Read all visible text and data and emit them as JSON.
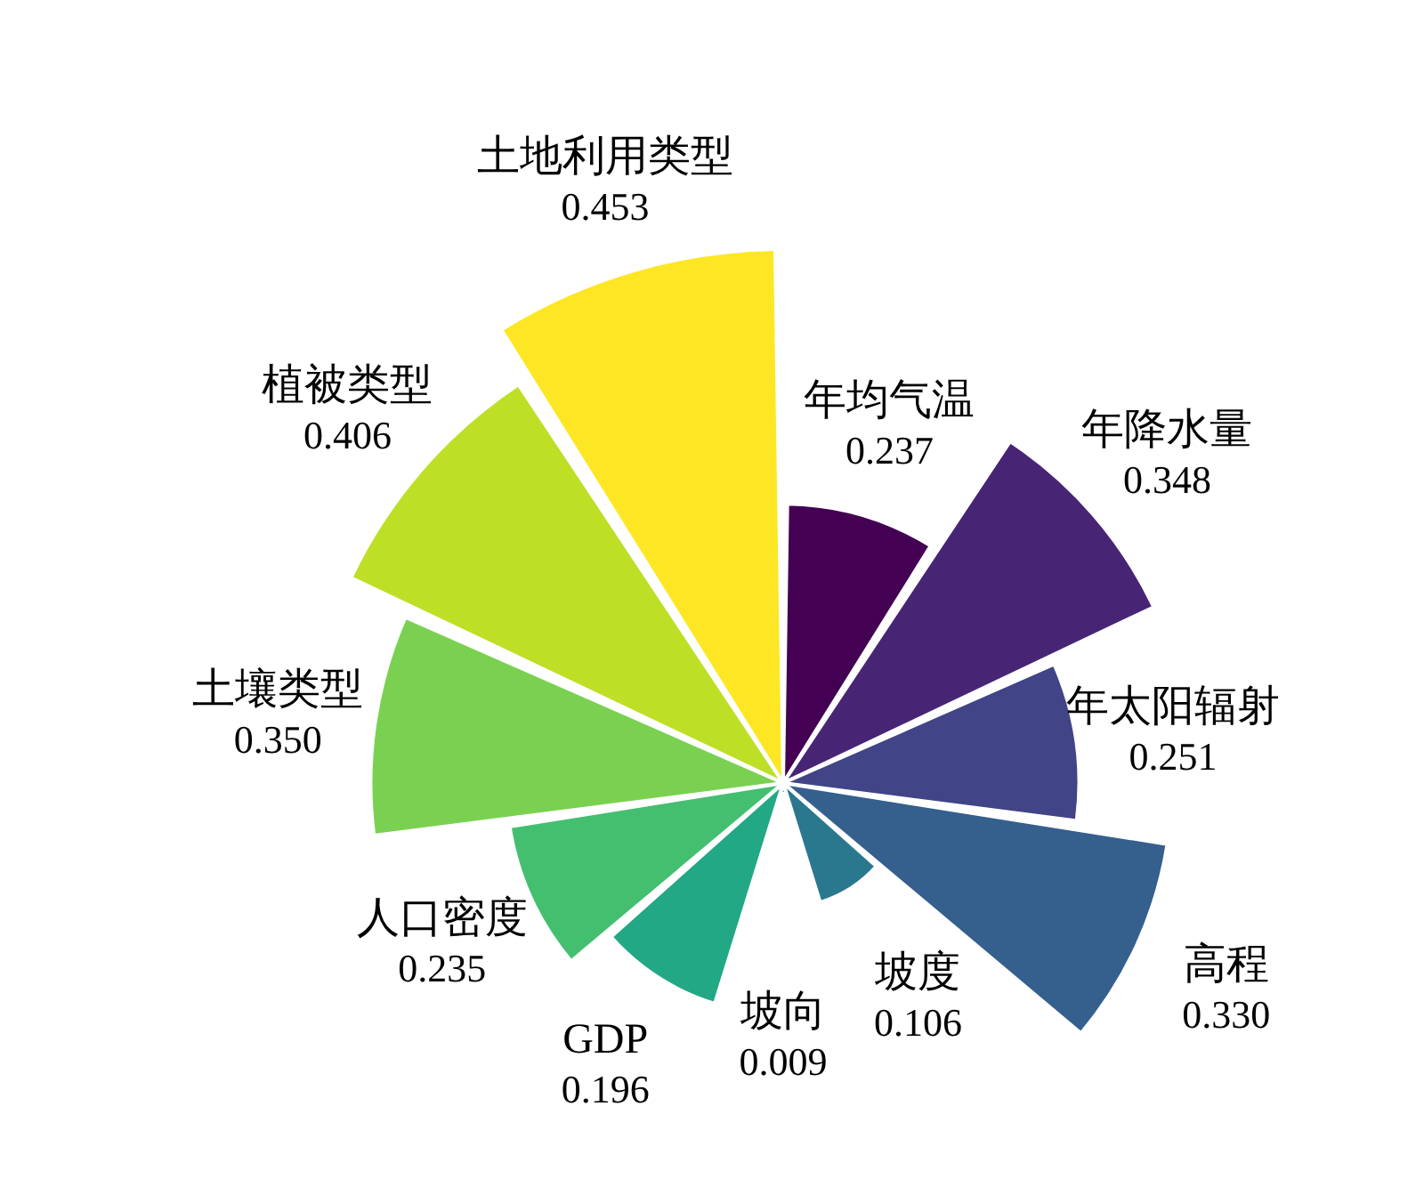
{
  "chart_data": {
    "type": "other",
    "categories": [
      "年均气温",
      "年降水量",
      "年太阳辐射",
      "高程",
      "坡度",
      "坡向",
      "GDP",
      "人口密度",
      "土壤类型",
      "植被类型",
      "土地利用类型"
    ],
    "values": [
      0.237,
      0.348,
      0.251,
      0.33,
      0.106,
      0.009,
      0.196,
      0.235,
      0.35,
      0.406,
      0.453
    ],
    "value_labels": [
      "0.237",
      "0.348",
      "0.251",
      "0.330",
      "0.106",
      "0.009",
      "0.196",
      "0.235",
      "0.350",
      "0.406",
      "0.453"
    ],
    "colors": [
      "#440154",
      "#482475",
      "#414487",
      "#355f8d",
      "#2a788e",
      "#21918c",
      "#22a884",
      "#44bf70",
      "#7ad151",
      "#bddf26",
      "#fde725"
    ]
  }
}
